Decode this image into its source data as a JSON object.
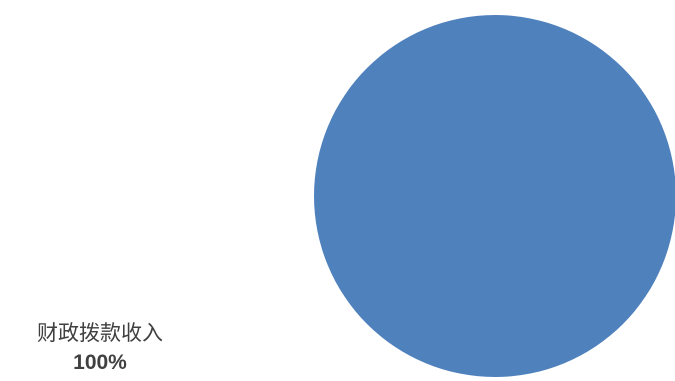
{
  "chart_data": {
    "type": "pie",
    "title": "",
    "categories": [
      "财政拨款收入"
    ],
    "values": [
      100
    ],
    "value_labels": [
      "100%"
    ],
    "colors": [
      "#4f81bd"
    ],
    "legend": "none",
    "data_label_placement": "outside-bottom-left"
  }
}
